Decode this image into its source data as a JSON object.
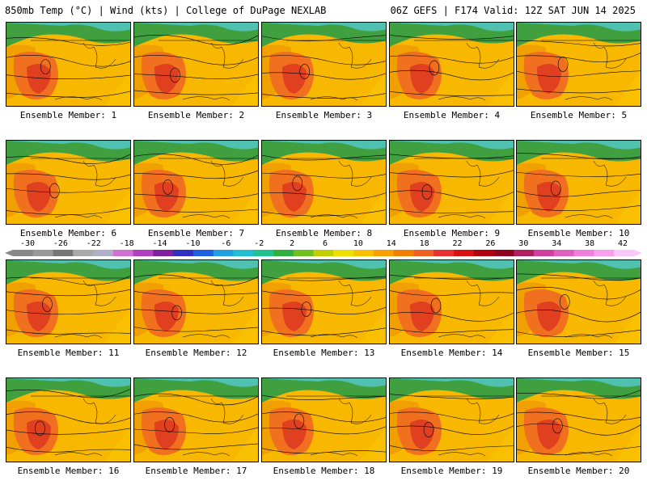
{
  "header": {
    "left": "850mb Temp (°C) | Wind (kts) | College of DuPage NEXLAB",
    "right": "06Z GEFS | F174 Valid: 12Z SAT JUN 14 2025"
  },
  "members": [
    "Ensemble Member: 1",
    "Ensemble Member: 2",
    "Ensemble Member: 3",
    "Ensemble Member: 4",
    "Ensemble Member: 5",
    "Ensemble Member: 6",
    "Ensemble Member: 7",
    "Ensemble Member: 8",
    "Ensemble Member: 9",
    "Ensemble Member: 10",
    "Ensemble Member: 11",
    "Ensemble Member: 12",
    "Ensemble Member: 13",
    "Ensemble Member: 14",
    "Ensemble Member: 15",
    "Ensemble Member: 16",
    "Ensemble Member: 17",
    "Ensemble Member: 18",
    "Ensemble Member: 19",
    "Ensemble Member: 20"
  ],
  "colorbar": {
    "labels": [
      "-30",
      "-26",
      "-22",
      "-18",
      "-14",
      "-10",
      "-6",
      "-2",
      "2",
      "6",
      "10",
      "14",
      "18",
      "22",
      "26",
      "30",
      "34",
      "38",
      "42"
    ],
    "colors": [
      "#888888",
      "#999999",
      "#777777",
      "#aaaaaa",
      "#b0b0c8",
      "#d070d0",
      "#b040c0",
      "#8020a0",
      "#3030c0",
      "#2060e0",
      "#20a0e0",
      "#20c0d0",
      "#20c090",
      "#30b040",
      "#70c020",
      "#c0d000",
      "#f0e000",
      "#f8c000",
      "#f8a000",
      "#f08000",
      "#f06020",
      "#e83030",
      "#d81010",
      "#b00010",
      "#900020",
      "#b02060",
      "#d040a0",
      "#e060c0",
      "#f080e0",
      "#f8a0f0",
      "#f8c8f8"
    ]
  }
}
